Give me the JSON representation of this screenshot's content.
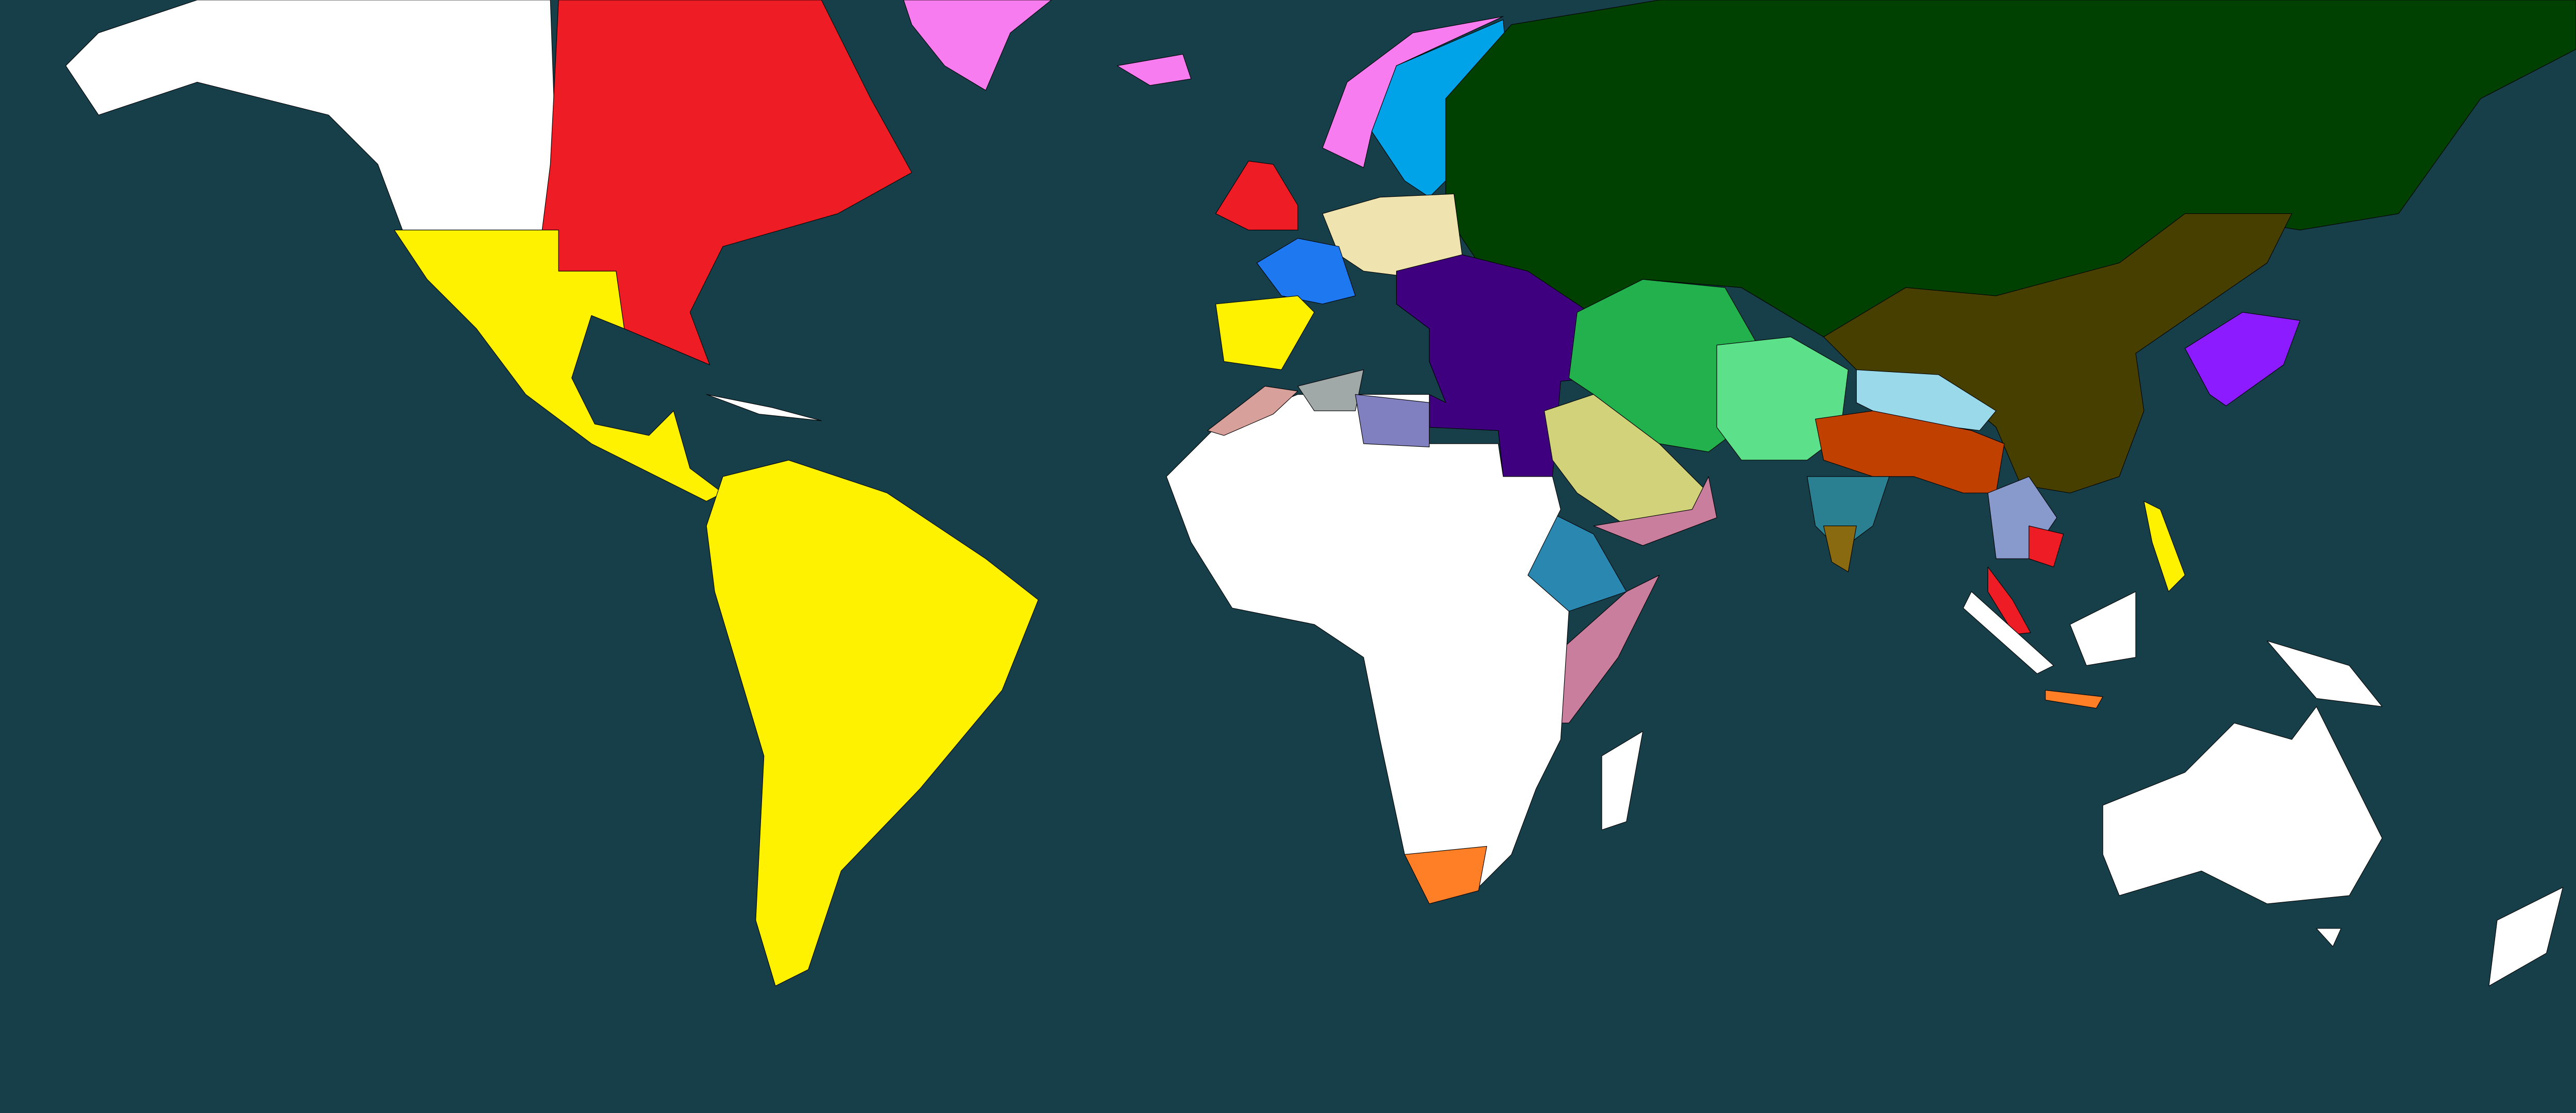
{
  "map": {
    "ocean_color": "#173f4a",
    "region_colors": {
      "north-america-west": "#ffffff",
      "north-america-east": "#ee1c24",
      "north-america-southwest-mexico": "#fff200",
      "caribbean-cuba": "#ffffff",
      "south-america": "#fff200",
      "greenland": "#f77cf0",
      "iceland": "#f77cf0",
      "norway": "#f77cf0",
      "sweden-finland": "#00a2e8",
      "britain": "#ee1c24",
      "germany": "#efe4b0",
      "france": "#1e78f0",
      "iberia": "#fff200",
      "russia": "#004000",
      "china-manchuria": "#473f00",
      "japan": "#8c1cff",
      "ottoman": "#3f007f",
      "arabia": "#d2d27a",
      "yemen-somalia": "#c87e9c",
      "east-africa-coast": "#c87e9c",
      "ethiopia": "#2a88b0",
      "persia": "#22b14c",
      "central-asia": "#5de08a",
      "tibet": "#99d9ea",
      "north-india": "#c04000",
      "central-india": "#2a8090",
      "south-india": "#8a6a10",
      "indochina": "#8899cc",
      "cambodia": "#ee1c24",
      "malaya": "#ee1c24",
      "philippines": "#fff200",
      "morocco": "#d8a09a",
      "algeria": "#a0a8a8",
      "libya": "#8080c0",
      "africa": "#ffffff",
      "south-africa": "#ff7f27",
      "madagascar": "#ffffff",
      "sumatra": "#ffffff",
      "borneo": "#ffffff",
      "new-guinea": "#ffffff",
      "java": "#ff7f27",
      "australia": "#ffffff",
      "tasmania": "#ffffff",
      "new-zealand": "#ffffff"
    }
  }
}
